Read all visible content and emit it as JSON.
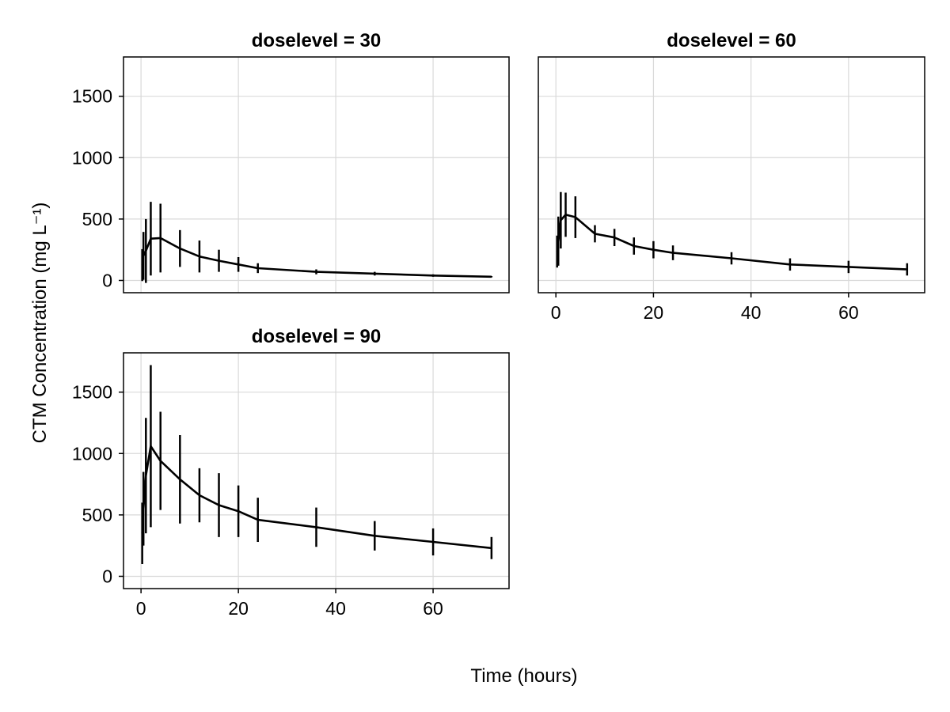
{
  "chart_data": {
    "type": "line",
    "xlabel": "Time (hours)",
    "ylabel": "CTM Concentration (mg L⁻¹)",
    "xlim": [
      -3.6,
      75.6
    ],
    "ylim": [
      -100,
      1820
    ],
    "xticks": [
      0,
      20,
      40,
      60
    ],
    "yticks": [
      0,
      500,
      1000,
      1500
    ],
    "grid": true,
    "line_color": "#000000",
    "grid_color": "#d9d9d9",
    "panels": [
      {
        "title": "doselevel = 30",
        "x": [
          0.25,
          0.5,
          1,
          2,
          4,
          8,
          12,
          16,
          20,
          24,
          36,
          48,
          60,
          72
        ],
        "y": [
          125,
          200,
          240,
          340,
          345,
          260,
          195,
          160,
          130,
          100,
          70,
          55,
          40,
          30
        ],
        "err": [
          130,
          195,
          260,
          300,
          280,
          150,
          130,
          90,
          60,
          40,
          20,
          15,
          10,
          5
        ]
      },
      {
        "title": "doselevel = 60",
        "x": [
          0.25,
          0.5,
          1,
          2,
          4,
          8,
          12,
          16,
          20,
          24,
          36,
          48,
          60,
          72
        ],
        "y": [
          235,
          320,
          490,
          535,
          515,
          380,
          350,
          280,
          250,
          225,
          180,
          130,
          110,
          90
        ],
        "err": [
          130,
          200,
          230,
          180,
          170,
          70,
          70,
          70,
          70,
          60,
          50,
          50,
          50,
          50
        ]
      },
      {
        "title": "doselevel = 90",
        "x": [
          0.25,
          0.5,
          1,
          2,
          4,
          8,
          12,
          16,
          20,
          24,
          36,
          48,
          60,
          72
        ],
        "y": [
          350,
          550,
          820,
          1060,
          940,
          790,
          660,
          580,
          530,
          460,
          400,
          330,
          280,
          230
        ],
        "err": [
          250,
          300,
          470,
          660,
          400,
          360,
          220,
          260,
          210,
          180,
          160,
          120,
          110,
          90
        ]
      }
    ]
  }
}
